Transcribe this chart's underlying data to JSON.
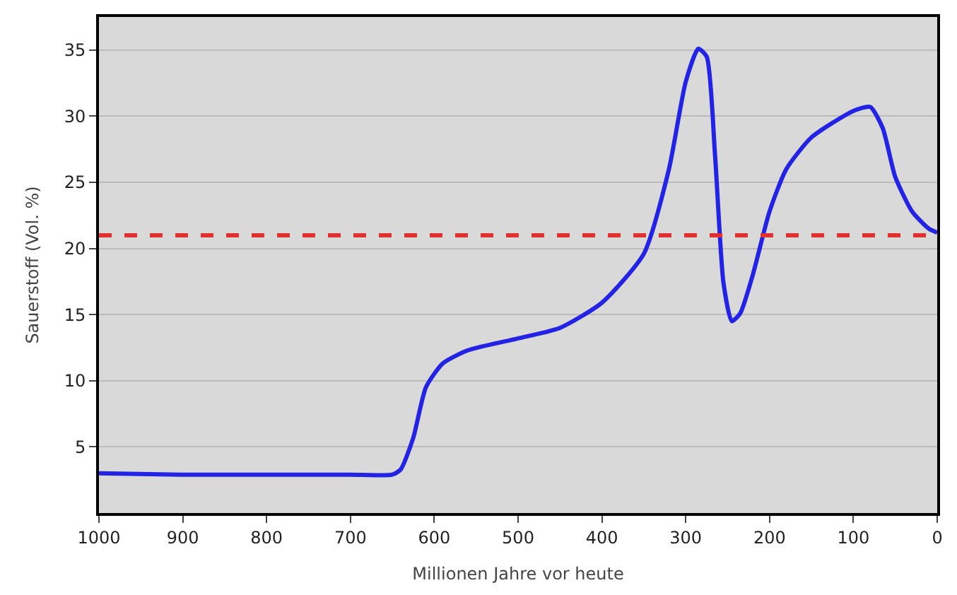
{
  "chart_data": {
    "type": "line",
    "xlabel": "Millionen Jahre vor heute",
    "ylabel": "Sauerstoff (Vol. %)",
    "xlim": [
      1000,
      0
    ],
    "xticks": [
      1000,
      900,
      800,
      700,
      600,
      500,
      400,
      300,
      200,
      100,
      0
    ],
    "ylim": [
      0,
      37.5
    ],
    "yticks": [
      5,
      10,
      15,
      20,
      25,
      30,
      35
    ],
    "grid": "y",
    "marker": "none",
    "line_style": "solid",
    "x": [
      1000,
      900,
      800,
      700,
      650,
      640,
      625,
      610,
      590,
      560,
      500,
      450,
      400,
      350,
      320,
      300,
      285,
      275,
      265,
      255,
      245,
      235,
      220,
      200,
      180,
      150,
      100,
      80,
      65,
      50,
      30,
      10,
      0
    ],
    "series": [
      {
        "color": "#2323e6",
        "values": [
          3.0,
          2.9,
          2.9,
          2.9,
          2.9,
          3.3,
          5.7,
          9.5,
          11.3,
          12.3,
          13.2,
          14.0,
          15.9,
          19.6,
          26.0,
          32.6,
          35.1,
          34.5,
          27.0,
          17.4,
          14.5,
          15.1,
          18.0,
          22.8,
          26.0,
          28.4,
          30.4,
          30.7,
          29.1,
          25.4,
          22.8,
          21.5,
          21.2
        ]
      }
    ],
    "ref_lines": [
      {
        "axis": "y",
        "value": 21,
        "color": "#e03030",
        "line_style": "dashed"
      }
    ]
  }
}
